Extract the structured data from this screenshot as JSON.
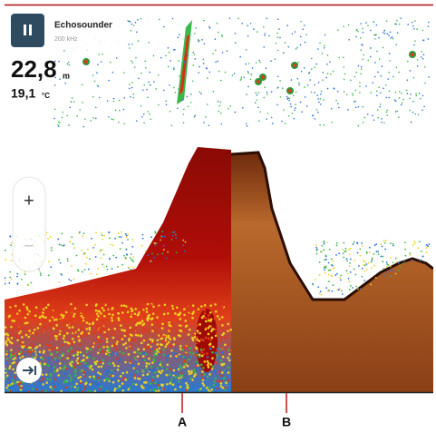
{
  "status_panel": {
    "title": "Echosounder",
    "frequency": "200 kHz"
  },
  "readouts": {
    "depth": "22,8",
    "depth_unit": "m",
    "temperature": "19,1",
    "temperature_unit": "°C"
  },
  "zoom": {
    "in": "+",
    "out": "−"
  },
  "callouts": {
    "left": "A",
    "right": "B"
  }
}
